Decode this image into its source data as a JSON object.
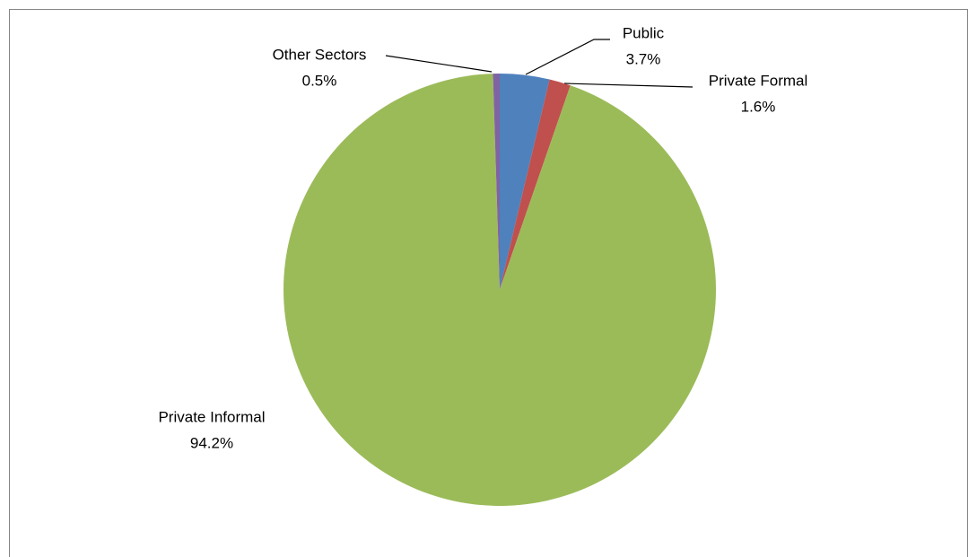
{
  "chart_data": {
    "type": "pie",
    "categories": [
      "Public",
      "Private Formal",
      "Private Informal",
      "Other Sectors"
    ],
    "values": [
      3.7,
      1.6,
      94.2,
      0.5
    ],
    "value_labels": [
      "3.7%",
      "1.6%",
      "94.2%",
      "0.5%"
    ],
    "colors": [
      "#4f81bd",
      "#c0504d",
      "#9bbb59",
      "#8064a2"
    ]
  }
}
